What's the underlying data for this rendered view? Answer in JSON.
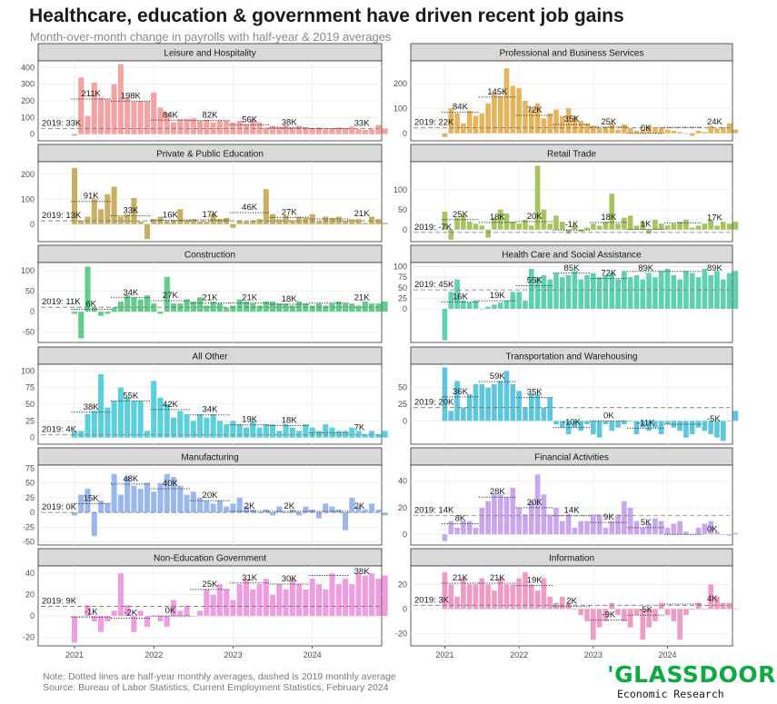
{
  "title": "Healthcare, education & government have driven recent job gains",
  "subtitle": "Month-over-month change in payrolls with half-year & 2019 averages",
  "note": {
    "line1": "Note: Dotted lines are half-year monthly averages, dashed is 2019 monthly average",
    "line2": "Source: Bureau of Labor Statistics, Current Employment Statistics, February 2024"
  },
  "logo": {
    "brand": "'GLASSDOOR",
    "sub": "Economic Research",
    "color": "#0caa41"
  },
  "chart_data": {
    "type": "bar",
    "x_ticks": [
      "2021",
      "2022",
      "2023",
      "2024"
    ],
    "x_range": [
      "2020-08",
      "2024-12"
    ],
    "grid": true,
    "panels": [
      {
        "name": "Leisure and Hospitality",
        "color": "#f4a3a3",
        "y_ticks": [
          0,
          100,
          200,
          300,
          400
        ],
        "ylim": [
          -40,
          440
        ],
        "avg_2019": 33,
        "avg_2019_label": "2019: 33K",
        "values": [
          -10,
          340,
          110,
          310,
          220,
          210,
          300,
          420,
          220,
          195,
          200,
          195,
          250,
          160,
          130,
          70,
          90,
          90,
          95,
          80,
          85,
          70,
          80,
          80,
          70,
          80,
          60,
          85,
          70,
          40,
          50,
          45,
          55,
          40,
          50,
          40,
          35,
          40,
          30,
          35,
          40,
          35,
          45,
          30,
          25,
          30,
          55,
          35
        ],
        "half_avgs": [
          211,
          198,
          84,
          82,
          56,
          38,
          33
        ],
        "half_labels": [
          "211K",
          "198K",
          "84K",
          "82K",
          "56K",
          "38K",
          "33K"
        ]
      },
      {
        "name": "Professional and Business Services",
        "color": "#e6b45c",
        "y_ticks": [
          0,
          100,
          200
        ],
        "ylim": [
          -30,
          290
        ],
        "avg_2019": 22,
        "avg_2019_label": "2019: 22K",
        "values": [
          -15,
          100,
          80,
          40,
          90,
          70,
          80,
          120,
          160,
          150,
          260,
          190,
          180,
          130,
          100,
          120,
          60,
          80,
          95,
          70,
          100,
          70,
          50,
          40,
          30,
          20,
          25,
          40,
          15,
          35,
          20,
          10,
          15,
          30,
          20,
          25,
          15,
          10,
          5,
          0,
          -10,
          10,
          5,
          30,
          20,
          25,
          40,
          15
        ],
        "half_avgs": [
          84,
          145,
          72,
          35,
          25,
          0,
          24
        ],
        "half_labels": [
          "84K",
          "145K",
          "72K",
          "35K",
          "25K",
          "0K",
          "24K"
        ]
      },
      {
        "name": "Private & Public Education",
        "color": "#c9b060",
        "y_ticks": [
          0,
          100,
          200
        ],
        "ylim": [
          -70,
          250
        ],
        "avg_2019": 13,
        "avg_2019_label": "2019: 13K",
        "values": [
          225,
          15,
          30,
          100,
          60,
          120,
          150,
          30,
          40,
          105,
          10,
          -60,
          20,
          30,
          10,
          15,
          60,
          15,
          20,
          10,
          10,
          40,
          20,
          25,
          -15,
          15,
          10,
          15,
          20,
          140,
          40,
          20,
          35,
          15,
          30,
          25,
          40,
          10,
          30,
          25,
          30,
          15,
          20,
          20,
          5,
          30,
          20,
          5
        ],
        "half_avgs": [
          91,
          33,
          16,
          17,
          46,
          27,
          21
        ],
        "half_labels": [
          "91K",
          "33K",
          "16K",
          "17K",
          "46K",
          "27K",
          "21K"
        ]
      },
      {
        "name": "Retail Trade",
        "color": "#a5c460",
        "y_ticks": [
          0,
          50,
          100
        ],
        "ylim": [
          -30,
          170
        ],
        "avg_2019": -7,
        "avg_2019_label": "2019: -7K",
        "values": [
          45,
          -25,
          30,
          35,
          20,
          15,
          10,
          -20,
          30,
          50,
          40,
          20,
          15,
          25,
          10,
          160,
          50,
          15,
          35,
          20,
          -10,
          10,
          -5,
          5,
          15,
          10,
          20,
          90,
          15,
          30,
          35,
          10,
          20,
          -10,
          25,
          15,
          10,
          15,
          20,
          25,
          5,
          10,
          15,
          25,
          10,
          20,
          15,
          20
        ],
        "half_avgs": [
          25,
          18,
          20,
          -1,
          18,
          1,
          17
        ],
        "half_labels": [
          "25K",
          "18K",
          "20K",
          "-1K",
          "18K",
          "1K",
          "17K"
        ]
      },
      {
        "name": "Construction",
        "color": "#62cc8a",
        "y_ticks": [
          -50,
          0,
          50,
          100
        ],
        "ylim": [
          -75,
          120
        ],
        "avg_2019": 11,
        "avg_2019_label": "2019: 11K",
        "values": [
          -5,
          -65,
          110,
          10,
          -10,
          -5,
          10,
          25,
          40,
          35,
          30,
          40,
          20,
          -5,
          85,
          20,
          20,
          30,
          25,
          35,
          15,
          25,
          20,
          10,
          15,
          30,
          25,
          20,
          15,
          25,
          25,
          20,
          20,
          15,
          25,
          20,
          15,
          20,
          15,
          20,
          25,
          20,
          20,
          15,
          25,
          20,
          20,
          25
        ],
        "half_avgs": [
          6,
          34,
          27,
          21,
          21,
          18,
          21
        ],
        "half_labels": [
          "6K",
          "34K",
          "27K",
          "21K",
          "21K",
          "18K",
          "21K"
        ]
      },
      {
        "name": "Health Care and Social Assistance",
        "color": "#5fd1b2",
        "y_ticks": [
          0,
          25,
          50,
          75,
          100
        ],
        "ylim": [
          -80,
          110
        ],
        "avg_2019": 45,
        "avg_2019_label": "2019: 45K",
        "values": [
          -75,
          40,
          70,
          20,
          15,
          20,
          0,
          5,
          10,
          15,
          20,
          40,
          40,
          20,
          95,
          75,
          80,
          70,
          85,
          75,
          80,
          90,
          70,
          80,
          85,
          75,
          80,
          85,
          70,
          90,
          75,
          80,
          70,
          85,
          75,
          90,
          95,
          80,
          70,
          90,
          85,
          75,
          95,
          80,
          90,
          70,
          85,
          90
        ],
        "half_avgs": [
          16,
          19,
          55,
          85,
          72,
          89,
          89
        ],
        "half_labels": [
          "16K",
          "19K",
          "55K",
          "85K",
          "72K",
          "89K",
          "89K"
        ]
      },
      {
        "name": "All Other",
        "color": "#5ccfdc",
        "y_ticks": [
          0,
          25,
          50,
          75,
          100
        ],
        "ylim": [
          -10,
          110
        ],
        "avg_2019": 4,
        "avg_2019_label": "2019: 4K",
        "values": [
          10,
          10,
          35,
          40,
          95,
          45,
          55,
          75,
          60,
          55,
          55,
          10,
          85,
          60,
          50,
          30,
          40,
          35,
          25,
          35,
          30,
          35,
          25,
          20,
          25,
          20,
          15,
          25,
          15,
          20,
          20,
          10,
          20,
          15,
          10,
          20,
          15,
          10,
          20,
          15,
          10,
          10,
          15,
          10,
          5,
          10,
          5,
          10
        ],
        "half_avgs": [
          38,
          55,
          42,
          34,
          19,
          18,
          7
        ],
        "half_labels": [
          "38K",
          "55K",
          "42K",
          "34K",
          "19K",
          "18K",
          "7K"
        ]
      },
      {
        "name": "Transportation and Warehousing",
        "color": "#5cc6dc",
        "y_ticks": [
          0,
          25,
          50
        ],
        "ylim": [
          -35,
          85
        ],
        "avg_2019": 20,
        "avg_2019_label": "2019: 20K",
        "values": [
          80,
          15,
          60,
          20,
          40,
          55,
          55,
          50,
          55,
          60,
          75,
          55,
          45,
          20,
          40,
          40,
          20,
          35,
          -5,
          -10,
          -20,
          -10,
          -15,
          -5,
          -20,
          -25,
          -5,
          -15,
          -10,
          -5,
          0,
          -20,
          -10,
          -15,
          -10,
          -20,
          -5,
          -10,
          -15,
          -25,
          -20,
          -10,
          -15,
          -20,
          -25,
          -30,
          0,
          15
        ],
        "half_avgs": [
          36,
          59,
          35,
          -10,
          0,
          -11,
          -5
        ],
        "half_labels": [
          "36K",
          "59K",
          "35K",
          "-10K",
          "0K",
          "-11K",
          "-5K"
        ]
      },
      {
        "name": "Manufacturing",
        "color": "#9bb8ee",
        "y_ticks": [
          -50,
          -25,
          0,
          25,
          50,
          75
        ],
        "ylim": [
          -55,
          80
        ],
        "avg_2019": 0,
        "avg_2019_label": "2019: 0K",
        "values": [
          -5,
          30,
          40,
          -40,
          20,
          15,
          65,
          30,
          60,
          45,
          40,
          50,
          35,
          50,
          65,
          60,
          45,
          30,
          35,
          25,
          20,
          15,
          20,
          10,
          15,
          25,
          10,
          5,
          0,
          5,
          -5,
          10,
          0,
          5,
          -5,
          10,
          5,
          -10,
          15,
          10,
          5,
          -30,
          25,
          10,
          5,
          15,
          5,
          -5
        ],
        "half_avgs": [
          15,
          48,
          40,
          20,
          2,
          2,
          2
        ],
        "half_labels": [
          "15K",
          "48K",
          "40K",
          "20K",
          "2K",
          "2K",
          "2K"
        ]
      },
      {
        "name": "Financial Activities",
        "color": "#c9a6ee",
        "y_ticks": [
          0,
          20,
          40
        ],
        "ylim": [
          -8,
          52
        ],
        "avg_2019": 14,
        "avg_2019_label": "2019: 14K",
        "values": [
          -5,
          10,
          5,
          10,
          10,
          5,
          20,
          25,
          30,
          30,
          28,
          35,
          20,
          15,
          25,
          45,
          30,
          15,
          20,
          10,
          15,
          5,
          10,
          10,
          15,
          15,
          5,
          10,
          15,
          25,
          20,
          10,
          5,
          8,
          12,
          10,
          5,
          8,
          10,
          2,
          0,
          5,
          8,
          10,
          2,
          0,
          -1,
          1
        ],
        "half_avgs": [
          8,
          28,
          20,
          14,
          9,
          5,
          0
        ],
        "half_labels": [
          "8K",
          "28K",
          "20K",
          "14K",
          "9K",
          "5K",
          "0K"
        ]
      },
      {
        "name": "Non-Education Government",
        "color": "#ef9de0",
        "y_ticks": [
          -20,
          0,
          20,
          40
        ],
        "ylim": [
          -28,
          47
        ],
        "avg_2019": 9,
        "avg_2019_label": "2019: 9K",
        "values": [
          -25,
          0,
          10,
          -5,
          -15,
          -5,
          5,
          40,
          10,
          -15,
          5,
          -10,
          0,
          -5,
          -10,
          15,
          5,
          10,
          0,
          5,
          25,
          20,
          30,
          25,
          15,
          30,
          35,
          25,
          30,
          35,
          20,
          30,
          25,
          35,
          30,
          25,
          35,
          30,
          25,
          40,
          30,
          35,
          30,
          40,
          38,
          40,
          35,
          38
        ],
        "half_avgs": [
          -1,
          -2,
          0,
          25,
          31,
          30,
          38
        ],
        "half_labels": [
          "-1K",
          "-2K",
          "0K",
          "25K",
          "31K",
          "30K",
          "38K"
        ]
      },
      {
        "name": "Information",
        "color": "#ef9bc6",
        "y_ticks": [
          -20,
          0,
          20
        ],
        "ylim": [
          -30,
          35
        ],
        "avg_2019": 3,
        "avg_2019_label": "2019: 3K",
        "values": [
          30,
          20,
          10,
          25,
          20,
          20,
          25,
          20,
          15,
          25,
          20,
          20,
          25,
          30,
          20,
          15,
          25,
          10,
          5,
          10,
          5,
          0,
          -5,
          -10,
          -25,
          -15,
          -10,
          5,
          -5,
          -10,
          -15,
          -5,
          -25,
          -15,
          -10,
          5,
          -5,
          -10,
          -25,
          -5,
          0,
          5,
          0,
          20,
          10,
          5,
          5,
          0
        ],
        "half_avgs": [
          21,
          21,
          19,
          2,
          -9,
          -5,
          4
        ],
        "half_labels": [
          "21K",
          "21K",
          "19K",
          "2K",
          "-9K",
          "-5K",
          "4K"
        ]
      }
    ]
  }
}
